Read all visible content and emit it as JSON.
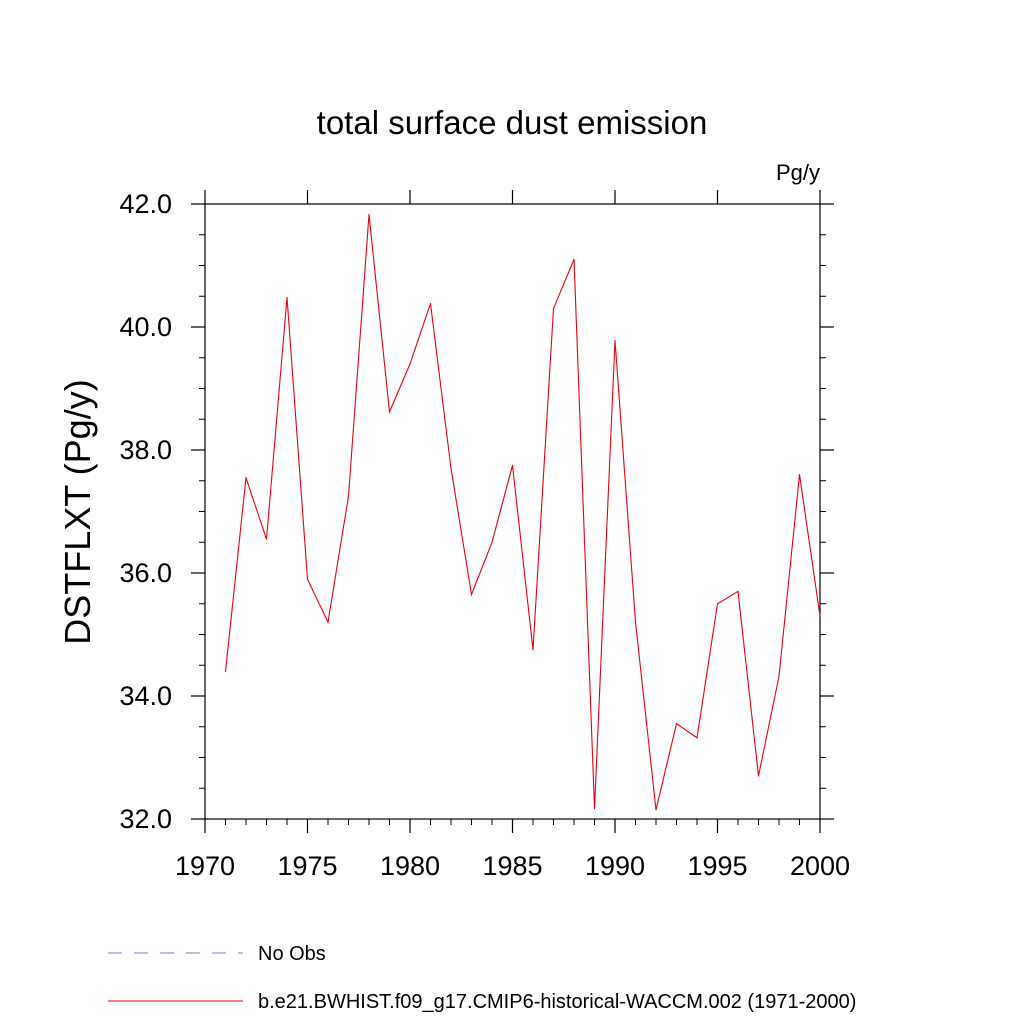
{
  "chart_data": {
    "type": "line",
    "title": "total surface dust emission",
    "units_label": "Pg/y",
    "xlabel": "",
    "ylabel": "DSTFLXT  (Pg/y)",
    "xlim": [
      1970,
      2000
    ],
    "ylim": [
      32.0,
      42.0
    ],
    "x_ticks": [
      1970,
      1975,
      1980,
      1985,
      1990,
      1995,
      2000
    ],
    "x_tick_labels": [
      "1970",
      "1975",
      "1980",
      "1985",
      "1990",
      "1995",
      "2000"
    ],
    "y_ticks": [
      32,
      34,
      36,
      38,
      40,
      42
    ],
    "y_tick_labels": [
      "32.0",
      "34.0",
      "36.0",
      "38.0",
      "40.0",
      "42.0"
    ],
    "grid": false,
    "series": [
      {
        "name": "b.e21.BWHIST.f09_g17.CMIP6-historical-WACCM.002 (1971-2000)",
        "color": "#e8000b",
        "style": "solid",
        "x": [
          1971,
          1972,
          1973,
          1974,
          1975,
          1976,
          1977,
          1978,
          1979,
          1980,
          1981,
          1982,
          1983,
          1984,
          1985,
          1986,
          1987,
          1988,
          1989,
          1990,
          1991,
          1992,
          1993,
          1994,
          1995,
          1996,
          1997,
          1998,
          1999,
          2000
        ],
        "values": [
          34.4,
          37.55,
          36.55,
          40.48,
          35.9,
          35.2,
          37.25,
          41.83,
          38.62,
          39.4,
          40.38,
          37.7,
          35.65,
          36.5,
          37.75,
          34.75,
          40.3,
          41.1,
          32.17,
          39.78,
          35.2,
          32.15,
          33.55,
          33.32,
          35.5,
          35.7,
          32.7,
          34.32,
          37.6,
          35.3
        ]
      }
    ],
    "legend": {
      "placement": "bottom-left",
      "entries": [
        {
          "label": "No Obs",
          "color": "#7f7fbf",
          "style": "dashed"
        },
        {
          "label": "b.e21.BWHIST.f09_g17.CMIP6-historical-WACCM.002 (1971-2000)",
          "color": "#e8000b",
          "style": "solid"
        }
      ]
    }
  }
}
